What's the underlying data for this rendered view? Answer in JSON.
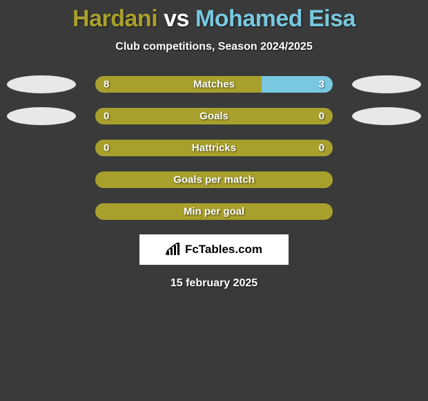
{
  "title": {
    "player1": "Hardani",
    "vs": "vs",
    "player2": "Mohamed Eisa",
    "color1": "#a8a02c",
    "color_vs": "#ffffff",
    "color2": "#78c8e0"
  },
  "subtitle": "Club competitions, Season 2024/2025",
  "colors": {
    "left": "#a8a02c",
    "right": "#78c8e0",
    "ellipse": "#e8e8e8",
    "background": "#3a3a3a"
  },
  "rows": [
    {
      "label": "Matches",
      "left_val": "8",
      "right_val": "3",
      "left_pct": 70,
      "right_pct": 30,
      "ellipse_left": true,
      "ellipse_right": true,
      "show_vals": true
    },
    {
      "label": "Goals",
      "left_val": "0",
      "right_val": "0",
      "left_pct": 100,
      "right_pct": 0,
      "ellipse_left": true,
      "ellipse_right": true,
      "show_vals": true
    },
    {
      "label": "Hattricks",
      "left_val": "0",
      "right_val": "0",
      "left_pct": 100,
      "right_pct": 0,
      "ellipse_left": false,
      "ellipse_right": false,
      "show_vals": true
    },
    {
      "label": "Goals per match",
      "left_val": "",
      "right_val": "",
      "left_pct": 100,
      "right_pct": 0,
      "ellipse_left": false,
      "ellipse_right": false,
      "show_vals": false
    },
    {
      "label": "Min per goal",
      "left_val": "",
      "right_val": "",
      "left_pct": 100,
      "right_pct": 0,
      "ellipse_left": false,
      "ellipse_right": false,
      "show_vals": false
    }
  ],
  "logo": "FcTables.com",
  "date": "15 february 2025"
}
